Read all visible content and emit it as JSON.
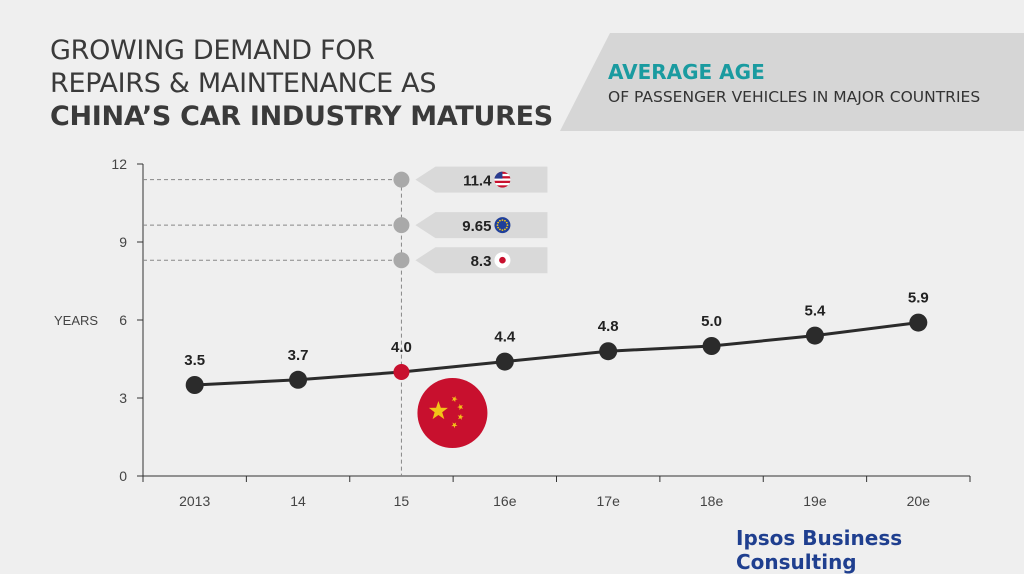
{
  "title": {
    "line1": "GROWING DEMAND FOR",
    "line2": "REPAIRS & MAINTENANCE AS",
    "line3": "CHINA’S CAR INDUSTRY MATURES"
  },
  "banner": {
    "title": "AVERAGE AGE",
    "subtitle": "OF PASSENGER VEHICLES IN MAJOR COUNTRIES"
  },
  "brand": "Ipsos Business Consulting",
  "colors": {
    "line": "#2b2b2b",
    "point": "#2b2b2b",
    "highlight": "#c8102e",
    "callout": "#a9a9a9",
    "callout_box": "#d9d9d9",
    "china_flag": "#c8102e",
    "star": "#f2c418"
  },
  "chart_data": {
    "type": "line",
    "ylabel": "YEARS",
    "ylim": [
      0,
      12
    ],
    "yticks": [
      0,
      3,
      6,
      9,
      12
    ],
    "categories": [
      "2013",
      "14",
      "15",
      "16e",
      "17e",
      "18e",
      "19e",
      "20e"
    ],
    "values": [
      3.5,
      3.7,
      4.0,
      4.4,
      4.8,
      5.0,
      5.4,
      5.9
    ],
    "value_labels": [
      "3.5",
      "3.7",
      "4.0",
      "4.4",
      "4.8",
      "5.0",
      "5.4",
      "5.9"
    ],
    "highlight_index": 2,
    "highlight_icon": "china-flag-icon",
    "references": [
      {
        "value": 11.4,
        "label": "11.4",
        "icon": "us-flag-icon"
      },
      {
        "value": 9.65,
        "label": "9.65",
        "icon": "eu-flag-icon"
      },
      {
        "value": 8.3,
        "label": "8.3",
        "icon": "japan-flag-icon"
      }
    ]
  }
}
